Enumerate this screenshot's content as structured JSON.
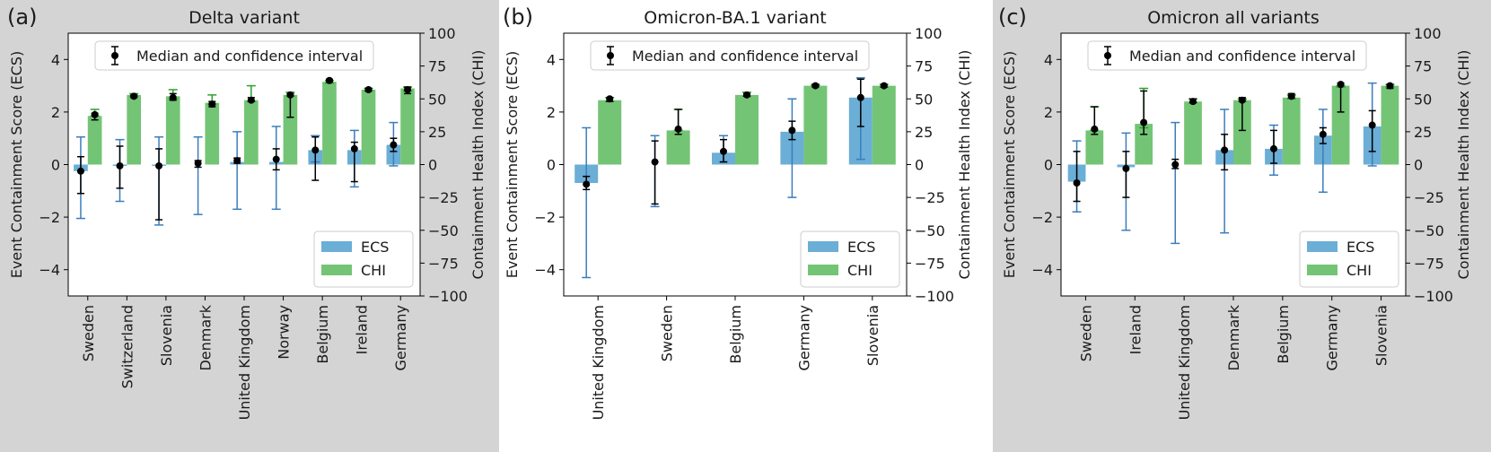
{
  "chart_data": [
    {
      "type": "bar",
      "panel_label": "(a)",
      "title": "Delta variant",
      "left_ylabel": "Event Containment Score (ECS)",
      "right_ylabel": "Containment Health Index (CHI)",
      "left_ylim": [
        -5,
        5
      ],
      "right_ylim": [
        -100,
        100
      ],
      "left_ticks": [
        "−4",
        "−2",
        "0",
        "2",
        "4"
      ],
      "right_ticks": [
        "−100",
        "−75",
        "−50",
        "−25",
        "0",
        "25",
        "50",
        "75",
        "100"
      ],
      "legend_top": "Median and confidence interval",
      "legend_bottom": [
        "ECS",
        "CHI"
      ],
      "categories": [
        "Sweden",
        "Switzerland",
        "Slovenia",
        "Denmark",
        "United Kingdom",
        "Norway",
        "Belgium",
        "Ireland",
        "Germany"
      ],
      "ecs": [
        -0.25,
        -0.05,
        -0.05,
        0.0,
        0.1,
        0.1,
        0.55,
        0.55,
        0.75
      ],
      "ecs_err": [
        [
          -2.05,
          1.05
        ],
        [
          -1.4,
          0.95
        ],
        [
          -2.3,
          1.05
        ],
        [
          -1.9,
          1.05
        ],
        [
          -1.7,
          1.25
        ],
        [
          -1.7,
          1.45
        ],
        [
          0.1,
          1.1
        ],
        [
          -0.85,
          1.3
        ],
        [
          -0.05,
          1.6
        ]
      ],
      "ecs_marker": [
        -0.25,
        -0.05,
        -0.05,
        0.05,
        0.15,
        0.2,
        0.55,
        0.6,
        0.75
      ],
      "ecs_marker_err": [
        [
          -1.1,
          0.3
        ],
        [
          -0.9,
          0.7
        ],
        [
          -2.1,
          0.6
        ],
        [
          -0.1,
          0.15
        ],
        [
          0.05,
          0.25
        ],
        [
          -0.2,
          0.6
        ],
        [
          -0.6,
          1.05
        ],
        [
          -0.65,
          0.85
        ],
        [
          0.5,
          1.0
        ]
      ],
      "chi": [
        37,
        53,
        52,
        47,
        49,
        53,
        63,
        57,
        58
      ],
      "chi_err": [
        [
          37,
          42
        ],
        [
          52,
          54
        ],
        [
          50,
          57
        ],
        [
          46,
          53
        ],
        [
          48,
          60
        ],
        [
          52,
          55
        ],
        [
          62,
          64
        ],
        [
          56,
          58
        ],
        [
          56,
          59
        ]
      ],
      "chi_marker": [
        38,
        52,
        51,
        46,
        49,
        53,
        64,
        57,
        57
      ],
      "chi_marker_err": [
        [
          34,
          39
        ],
        [
          51,
          53
        ],
        [
          49,
          54
        ],
        [
          44,
          48
        ],
        [
          48,
          51
        ],
        [
          36,
          54
        ],
        [
          63,
          65
        ],
        [
          56,
          58
        ],
        [
          54,
          59
        ]
      ]
    },
    {
      "type": "bar",
      "panel_label": "(b)",
      "title": "Omicron-BA.1 variant",
      "left_ylabel": "Event Containment Score (ECS)",
      "right_ylabel": "Containment Health Index (CHI)",
      "left_ylim": [
        -5,
        5
      ],
      "right_ylim": [
        -100,
        100
      ],
      "left_ticks": [
        "−4",
        "−2",
        "0",
        "2",
        "4"
      ],
      "right_ticks": [
        "−100",
        "−75",
        "−50",
        "−25",
        "0",
        "25",
        "50",
        "75",
        "100"
      ],
      "legend_top": "Median and confidence interval",
      "legend_bottom": [
        "ECS",
        "CHI"
      ],
      "categories": [
        "United Kingdom",
        "Sweden",
        "Belgium",
        "Germany",
        "Slovenia"
      ],
      "ecs": [
        -0.7,
        0.0,
        0.45,
        1.25,
        2.55
      ],
      "ecs_err": [
        [
          -4.3,
          1.4
        ],
        [
          -1.6,
          1.1
        ],
        [
          0.1,
          1.1
        ],
        [
          -1.25,
          2.5
        ],
        [
          0.2,
          3.3
        ]
      ],
      "ecs_marker": [
        -0.75,
        0.1,
        0.5,
        1.3,
        2.55
      ],
      "ecs_marker_err": [
        [
          -0.95,
          -0.45
        ],
        [
          -1.5,
          0.9
        ],
        [
          0.1,
          0.95
        ],
        [
          0.95,
          1.65
        ],
        [
          1.45,
          3.25
        ]
      ],
      "chi": [
        49,
        26,
        53,
        60,
        60
      ],
      "chi_err": [
        [
          48,
          51
        ],
        [
          26,
          42
        ],
        [
          52,
          55
        ],
        [
          60,
          61
        ],
        [
          59,
          61
        ]
      ],
      "chi_marker": [
        50,
        27,
        53,
        60,
        60
      ],
      "chi_marker_err": [
        [
          48,
          51
        ],
        [
          23,
          42
        ],
        [
          52,
          54
        ],
        [
          59,
          61
        ],
        [
          59,
          61
        ]
      ]
    },
    {
      "type": "bar",
      "panel_label": "(c)",
      "title": "Omicron all variants",
      "left_ylabel": "Event Containment Score (ECS)",
      "right_ylabel": "Containment Health Index (CHI)",
      "left_ylim": [
        -5,
        5
      ],
      "right_ylim": [
        -100,
        100
      ],
      "left_ticks": [
        "−4",
        "−2",
        "0",
        "2",
        "4"
      ],
      "right_ticks": [
        "−100",
        "−75",
        "−50",
        "−25",
        "0",
        "25",
        "50",
        "75",
        "100"
      ],
      "legend_top": "Median and confidence interval",
      "legend_bottom": [
        "ECS",
        "CHI"
      ],
      "categories": [
        "Sweden",
        "Ireland",
        "United Kingdom",
        "Denmark",
        "Belgium",
        "Germany",
        "Slovenia"
      ],
      "ecs": [
        -0.65,
        -0.1,
        0.0,
        0.55,
        0.6,
        1.1,
        1.45
      ],
      "ecs_err": [
        [
          -1.8,
          0.9
        ],
        [
          -2.5,
          1.2
        ],
        [
          -3.0,
          1.6
        ],
        [
          -2.6,
          2.1
        ],
        [
          -0.4,
          1.5
        ],
        [
          -1.05,
          2.1
        ],
        [
          -0.05,
          3.1
        ]
      ],
      "ecs_marker": [
        -0.7,
        -0.15,
        0.0,
        0.55,
        0.6,
        1.15,
        1.5
      ],
      "ecs_marker_err": [
        [
          -1.4,
          0.5
        ],
        [
          -1.25,
          0.5
        ],
        [
          -0.15,
          0.2
        ],
        [
          -0.2,
          1.15
        ],
        [
          0.05,
          1.3
        ],
        [
          0.8,
          1.4
        ],
        [
          0.5,
          2.05
        ]
      ],
      "chi": [
        26,
        31,
        48,
        49,
        51,
        60,
        60
      ],
      "chi_err": [
        [
          26,
          44
        ],
        [
          28,
          58
        ],
        [
          47,
          50
        ],
        [
          48,
          50
        ],
        [
          50,
          53
        ],
        [
          59,
          60
        ],
        [
          59,
          61
        ]
      ],
      "chi_marker": [
        27,
        32,
        48,
        49,
        52,
        61,
        60
      ],
      "chi_marker_err": [
        [
          23,
          44
        ],
        [
          23,
          56
        ],
        [
          47,
          50
        ],
        [
          26,
          51
        ],
        [
          51,
          54
        ],
        [
          40,
          62
        ],
        [
          58,
          61
        ]
      ]
    }
  ]
}
